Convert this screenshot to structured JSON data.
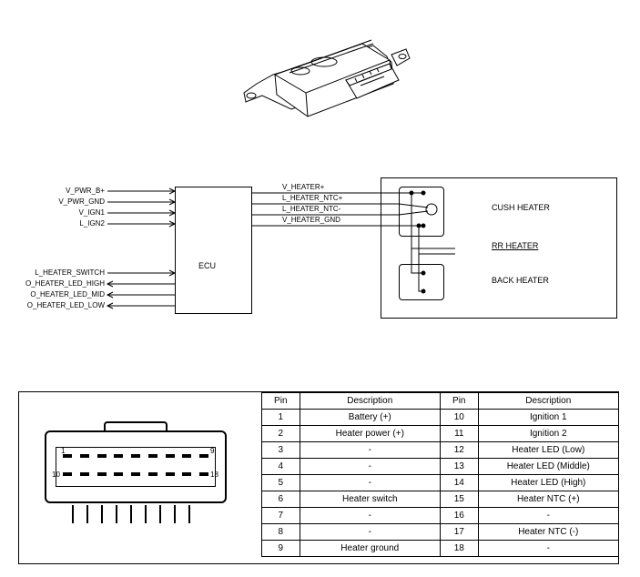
{
  "ecu_block": {
    "label": "ECU",
    "left_signals_top": [
      "V_PWR_B+",
      "V_PWR_GND",
      "V_IGN1",
      "L_IGN2"
    ],
    "left_signals_bottom": [
      "L_HEATER_SWITCH",
      "O_HEATER_LED_HIGH",
      "O_HEATER_LED_MID",
      "O_HEATER_LED_LOW"
    ],
    "mid_signals": [
      "V_HEATER+",
      "L_HEATER_NTC+",
      "L_HEATER_NTC-",
      "V_HEATER_GND"
    ],
    "heater_labels": {
      "cush": "CUSH HEATER",
      "rr": "RR HEATER",
      "back": "BACK HEATER"
    }
  },
  "connector": {
    "pin_marks": {
      "tl": "1",
      "tr": "9",
      "bl": "10",
      "br": "18"
    }
  },
  "pin_table": {
    "headers": [
      "Pin",
      "Description",
      "Pin",
      "Description"
    ],
    "rows": [
      [
        "1",
        "Battery (+)",
        "10",
        "Ignition 1"
      ],
      [
        "2",
        "Heater power (+)",
        "11",
        "Ignition 2"
      ],
      [
        "3",
        "-",
        "12",
        "Heater LED (Low)"
      ],
      [
        "4",
        "-",
        "13",
        "Heater LED (Middle)"
      ],
      [
        "5",
        "-",
        "14",
        "Heater LED (High)"
      ],
      [
        "6",
        "Heater switch",
        "15",
        "Heater NTC (+)"
      ],
      [
        "7",
        "-",
        "16",
        "-"
      ],
      [
        "8",
        "-",
        "17",
        "Heater NTC (-)"
      ],
      [
        "9",
        "Heater ground",
        "18",
        "-"
      ]
    ]
  },
  "style": {
    "stroke": "#000000",
    "bg": "#ffffff",
    "font_small": 8,
    "font_body": 10
  }
}
